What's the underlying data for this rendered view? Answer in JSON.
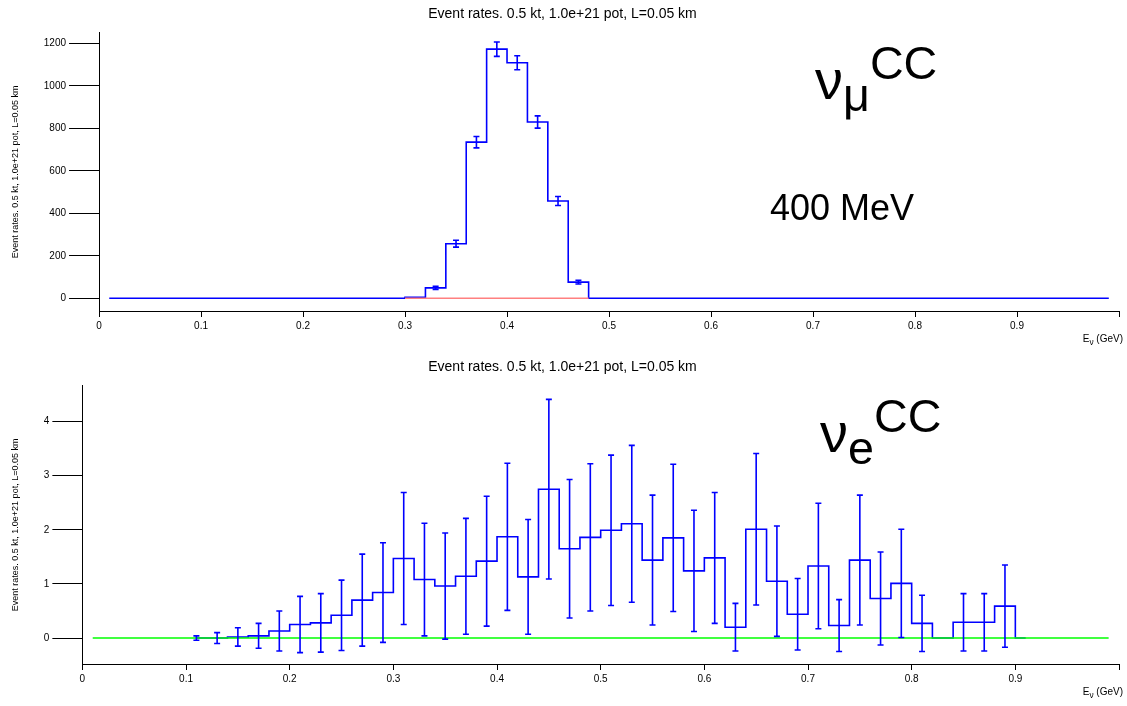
{
  "chart_data": [
    {
      "type": "step",
      "title": "Event rates. 0.5 kt, 1.0e+21 pot, L=0.05 km",
      "xlabel": "E$_{ν}$ (GeV)",
      "ylabel": "Event rates. 0.5 kt, 1.0e+21 pot, L=0.05 km",
      "x": [
        0.01,
        0.03,
        0.05,
        0.07,
        0.09,
        0.11,
        0.13,
        0.15,
        0.17,
        0.19,
        0.21,
        0.23,
        0.25,
        0.27,
        0.29,
        0.31,
        0.33,
        0.35,
        0.37,
        0.39,
        0.41,
        0.43,
        0.45,
        0.47,
        0.49,
        0.51,
        0.53,
        0.55,
        0.57,
        0.59,
        0.61,
        0.63,
        0.65,
        0.67,
        0.69,
        0.71,
        0.73,
        0.75,
        0.77,
        0.79,
        0.81,
        0.83,
        0.85,
        0.87,
        0.89,
        0.91,
        0.93,
        0.95,
        0.97,
        0.99
      ],
      "series": [
        {
          "color": "#0000ff",
          "values": [
            0,
            0,
            0,
            0,
            0,
            0,
            0,
            0,
            0,
            0,
            0,
            0,
            0,
            0,
            0,
            5,
            49,
            257,
            735,
            1173,
            1109,
            830,
            458,
            76,
            0,
            0,
            0,
            0,
            0,
            0,
            0,
            0,
            0,
            0,
            0,
            0,
            0,
            0,
            0,
            0,
            0,
            0,
            0,
            0,
            0,
            0,
            0,
            0,
            0,
            0
          ],
          "errors": [
            null,
            null,
            null,
            null,
            null,
            null,
            null,
            null,
            null,
            null,
            null,
            null,
            null,
            null,
            null,
            null,
            7,
            16,
            27,
            34,
            33,
            29,
            21,
            9,
            null,
            null,
            null,
            null,
            null,
            null,
            null,
            null,
            null,
            null,
            null,
            null,
            null,
            null,
            null,
            null,
            null,
            null,
            null,
            null,
            null,
            null,
            null,
            null,
            null,
            null
          ]
        },
        {
          "type": "line",
          "color": "#ff8080",
          "x": [
            0.3,
            0.48
          ],
          "values": [
            0,
            0
          ]
        }
      ],
      "xlim": [
        0,
        1
      ],
      "xticks": [
        0,
        0.1,
        0.2,
        0.3,
        0.4,
        0.5,
        0.6,
        0.7,
        0.8,
        0.9,
        {
          "value": 1,
          "label": null
        }
      ],
      "ylim": [
        -60,
        1250
      ],
      "yticks": [
        0,
        200,
        400,
        600,
        800,
        1000,
        1200
      ],
      "annotations": [
        "ν$_{μ}$$^{CC}$",
        "400 MeV"
      ]
    },
    {
      "type": "step",
      "title": "Event rates. 0.5 kt, 1.0e+21 pot, L=0.05 km",
      "xlabel": "E$_{ν}$ (GeV)",
      "ylabel": "Event rates. 0.5 kt, 1.0e+21 pot, L=0.05 km",
      "x": [
        0.01,
        0.03,
        0.05,
        0.07,
        0.09,
        0.11,
        0.13,
        0.15,
        0.17,
        0.19,
        0.21,
        0.23,
        0.25,
        0.27,
        0.29,
        0.31,
        0.33,
        0.35,
        0.37,
        0.39,
        0.41,
        0.43,
        0.45,
        0.47,
        0.49,
        0.51,
        0.53,
        0.55,
        0.57,
        0.59,
        0.61,
        0.63,
        0.65,
        0.67,
        0.69,
        0.71,
        0.73,
        0.75,
        0.77,
        0.79,
        0.81,
        0.83,
        0.85,
        0.87,
        0.89,
        0.91,
        0.93,
        0.95,
        0.97,
        0.99
      ],
      "series": [
        {
          "color": "#0000ff",
          "values": [
            null,
            null,
            null,
            null,
            null,
            0,
            0,
            0.02,
            0.04,
            0.13,
            0.25,
            0.28,
            0.42,
            0.7,
            0.84,
            1.47,
            1.08,
            0.96,
            1.14,
            1.42,
            1.87,
            1.13,
            2.75,
            1.65,
            1.86,
            1.99,
            2.11,
            1.44,
            1.85,
            1.24,
            1.48,
            0.2,
            2.01,
            1.05,
            0.44,
            1.33,
            0.23,
            1.44,
            0.73,
            1.01,
            0.27,
            0,
            0.29,
            0.29,
            0.59,
            0,
            null,
            null,
            null,
            null
          ],
          "errors": [
            null,
            null,
            null,
            null,
            null,
            0.04,
            0.1,
            0.17,
            0.23,
            0.37,
            0.52,
            0.54,
            0.65,
            0.85,
            0.92,
            1.22,
            1.04,
            0.98,
            1.07,
            1.2,
            1.36,
            1.06,
            1.66,
            1.28,
            1.36,
            1.39,
            1.45,
            1.2,
            1.36,
            1.12,
            1.21,
            0.44,
            1.4,
            1.02,
            0.66,
            1.16,
            0.48,
            1.2,
            0.86,
            1.0,
            0.52,
            null,
            0.53,
            0.53,
            0.76,
            null,
            null,
            null,
            null,
            null
          ]
        },
        {
          "color": "#00ff00",
          "values": [
            0,
            0,
            0,
            0,
            0,
            0,
            0,
            0,
            0,
            0,
            0,
            0,
            0,
            0,
            0,
            0,
            0,
            0,
            0,
            0,
            0,
            0,
            0,
            0,
            0,
            0,
            0,
            0,
            0,
            0,
            0,
            0,
            0,
            0,
            0,
            0,
            0,
            0,
            0,
            0,
            0,
            0,
            0,
            0,
            0,
            0,
            0,
            0,
            0,
            0
          ]
        }
      ],
      "xlim": [
        0,
        1
      ],
      "xticks": [
        0,
        0.1,
        0.2,
        0.3,
        0.4,
        0.5,
        0.6,
        0.7,
        0.8,
        0.9,
        {
          "value": 1,
          "label": null
        }
      ],
      "ylim": [
        -0.48,
        4.66
      ],
      "yticks": [
        0,
        1,
        2,
        3,
        4
      ],
      "annotations": [
        "ν$_{e}$$^{CC}$"
      ]
    }
  ]
}
